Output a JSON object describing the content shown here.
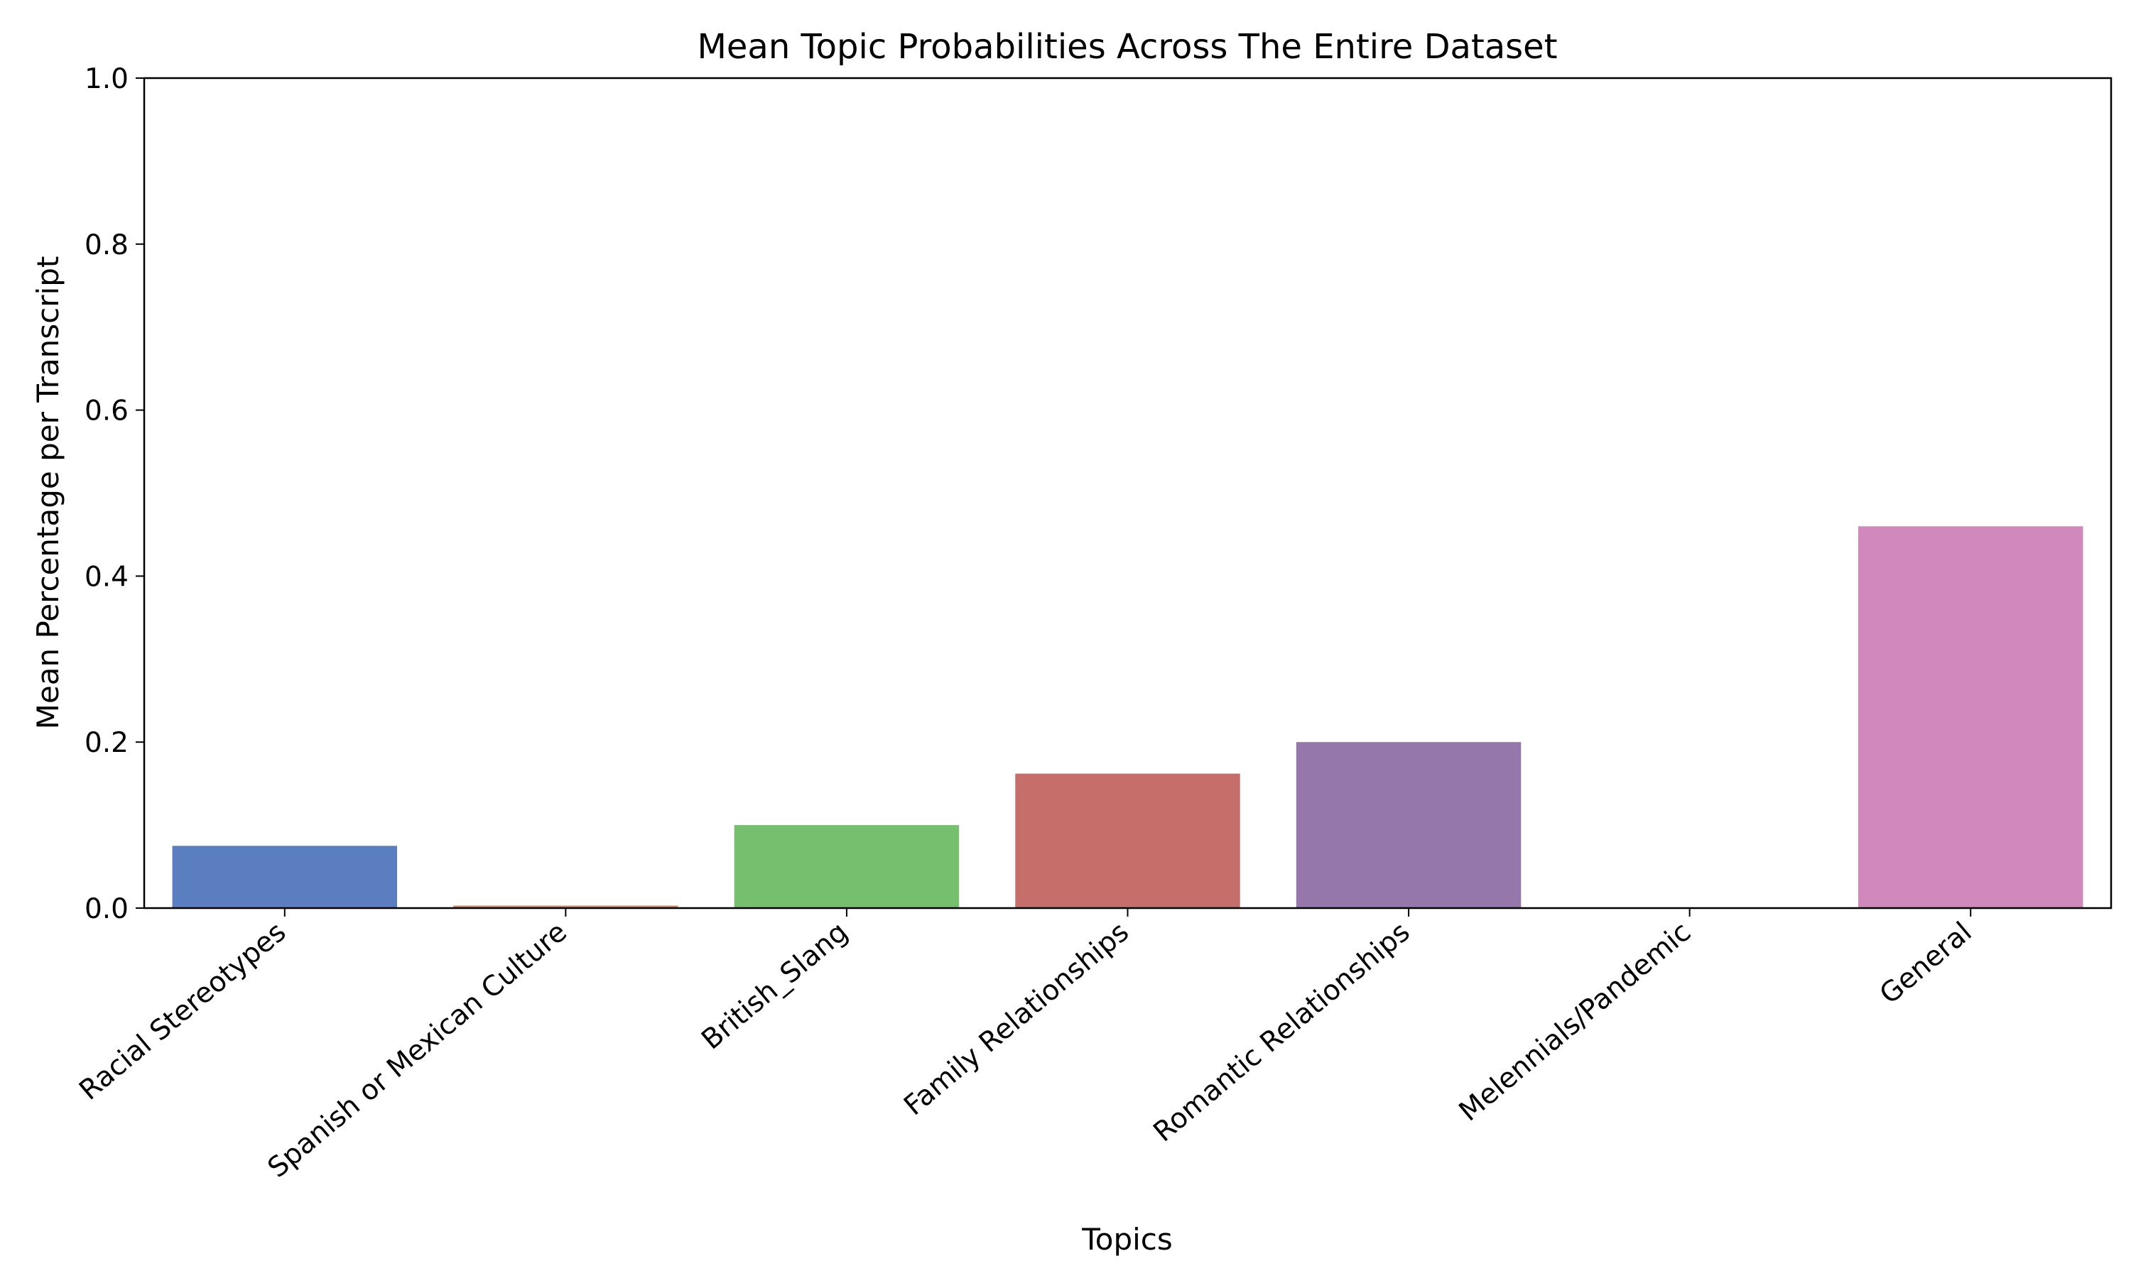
{
  "chart_data": {
    "type": "bar",
    "title": "Mean Topic Probabilities Across The Entire Dataset",
    "xlabel": "Topics",
    "ylabel": "Mean Percentage per Transcript",
    "ylim": [
      0,
      1.0
    ],
    "yticks": [
      "0.0",
      "0.2",
      "0.4",
      "0.6",
      "0.8",
      "1.0"
    ],
    "grid": false,
    "legend": "none",
    "categories": [
      "Racial Stereotypes",
      "Spanish or Mexican Culture",
      "British_Slang",
      "Family Relationships",
      "Romantic Relationships",
      "Melennials/Pandemic",
      "General"
    ],
    "values": [
      0.075,
      0.003,
      0.1,
      0.162,
      0.2,
      0.0,
      0.46
    ],
    "colors": [
      "#5b7ec0",
      "#d88a5c",
      "#75bf6f",
      "#c66e6a",
      "#9577ab",
      "#8c6b5f",
      "#cf89bb"
    ]
  }
}
